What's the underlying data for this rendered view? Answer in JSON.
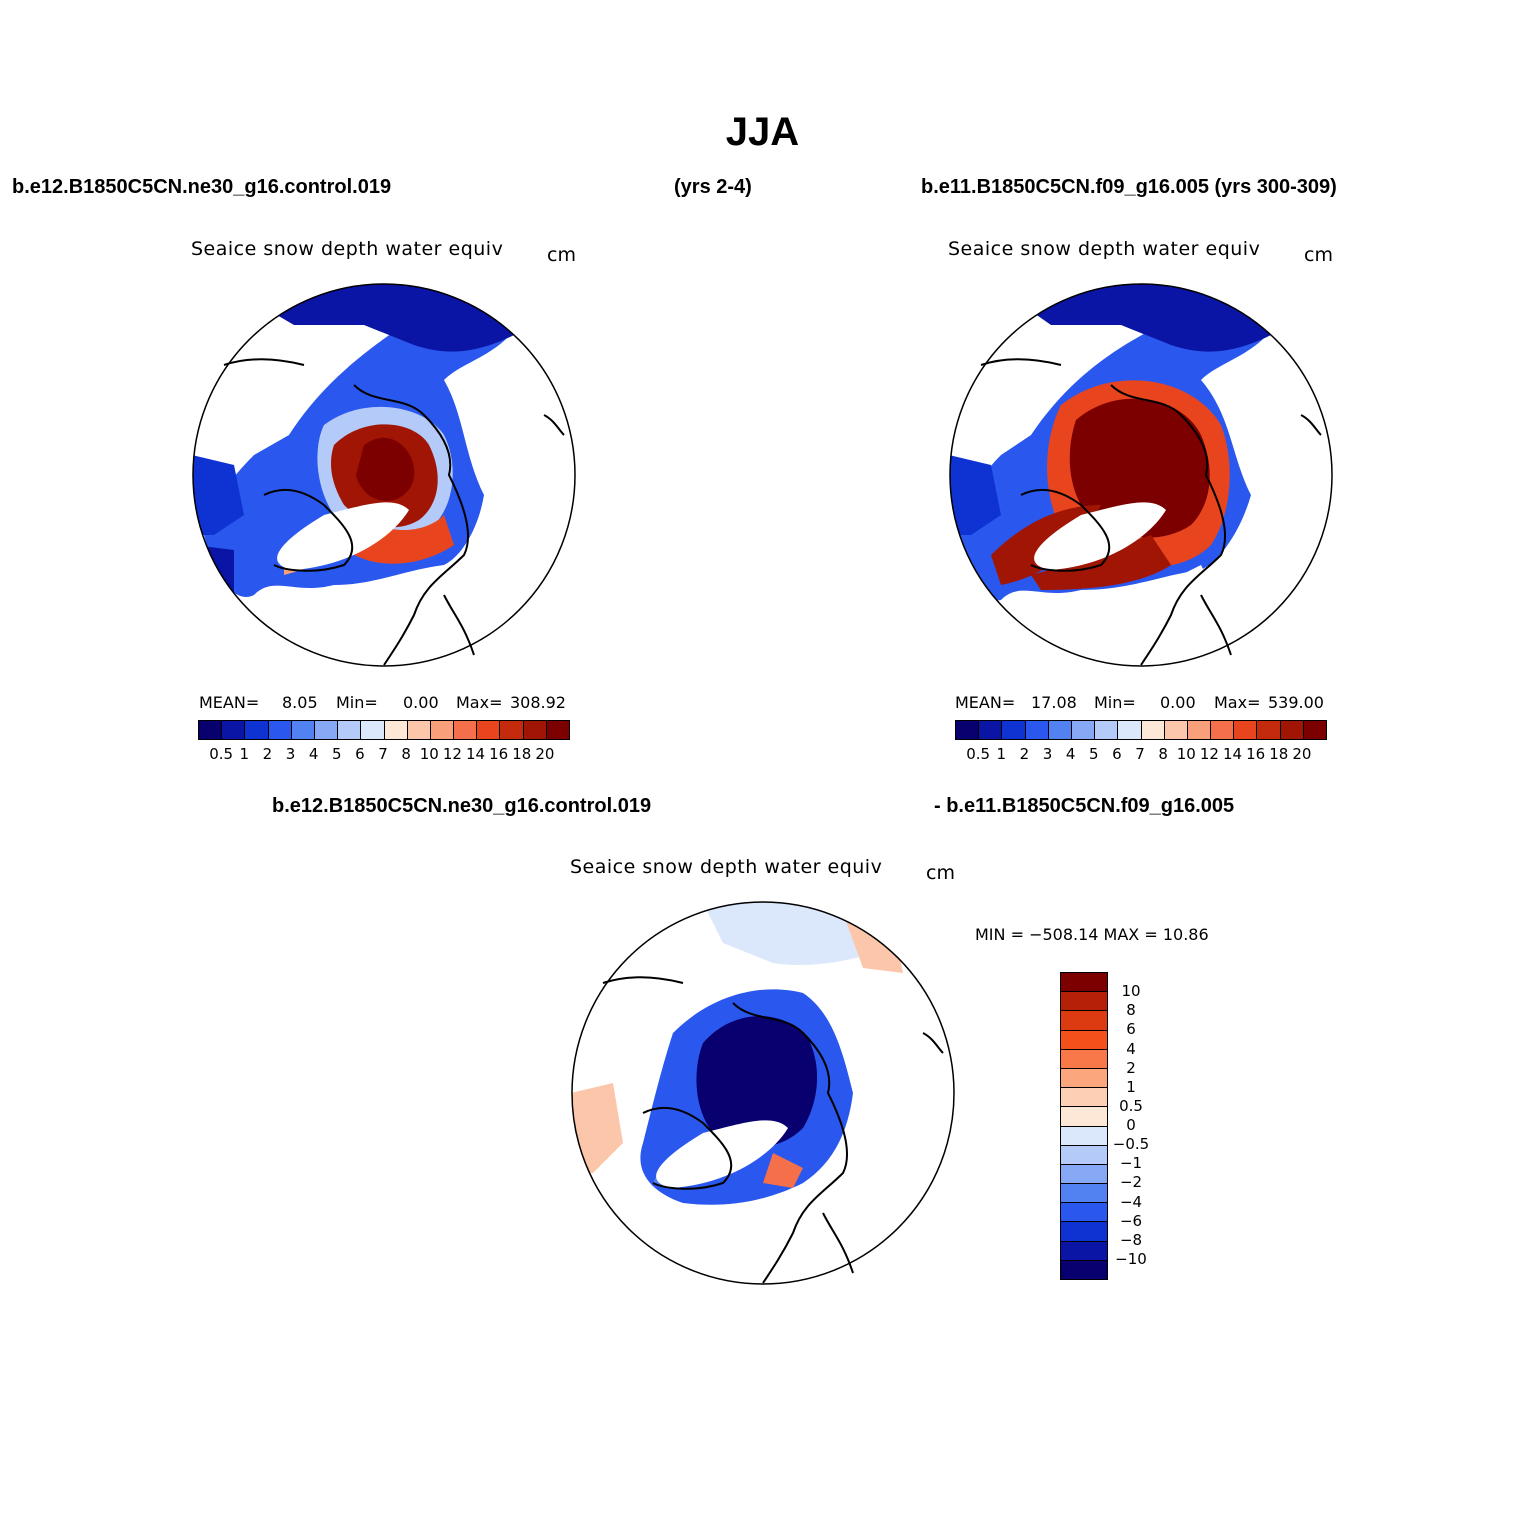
{
  "title": "JJA",
  "panel1": {
    "header_left": "b.e12.B1850C5CN.ne30_g16.control.019",
    "header_mid": "(yrs 2-4)",
    "subtitle": "Seaice snow depth water equiv",
    "units": "cm",
    "mean_label": "MEAN=",
    "mean": "8.05",
    "min_label": "Min=",
    "min": "0.00",
    "max_label": "Max=",
    "max": "308.92"
  },
  "panel2": {
    "header": "b.e11.B1850C5CN.f09_g16.005 (yrs 300-309)",
    "subtitle": "Seaice snow depth water equiv",
    "units": "cm",
    "mean_label": "MEAN=",
    "mean": "17.08",
    "min_label": "Min=",
    "min": "0.00",
    "max_label": "Max=",
    "max": "539.00"
  },
  "panel3": {
    "header_left": "b.e12.B1850C5CN.ne30_g16.control.019",
    "header_right": "- b.e11.B1850C5CN.f09_g16.005",
    "subtitle": "Seaice snow depth water equiv",
    "units": "cm",
    "minmax": "MIN = −508.14 MAX =   10.86"
  },
  "colorbar_main": {
    "colors": [
      "#08006e",
      "#0a14a5",
      "#0f32d2",
      "#2a58ee",
      "#5282f2",
      "#86a8f5",
      "#b4cbf9",
      "#dbe8fb",
      "#fde8d8",
      "#fcc6aa",
      "#f9a07a",
      "#f5704a",
      "#e8451f",
      "#c42a0c",
      "#a11505",
      "#7d0000"
    ],
    "labels": [
      "0.5",
      "1",
      "2",
      "3",
      "4",
      "5",
      "6",
      "7",
      "8",
      "10",
      "12",
      "14",
      "16",
      "18",
      "20"
    ]
  },
  "colorbar_diff": {
    "colors": [
      "#7d0000",
      "#b52008",
      "#dc3a10",
      "#f4501c",
      "#f8784a",
      "#fba67c",
      "#fdcfb4",
      "#fde8d8",
      "#dbe8fb",
      "#b4cbf9",
      "#86a8f5",
      "#5282f2",
      "#2a58ee",
      "#0f32d2",
      "#0a14a5",
      "#08006e"
    ],
    "labels": [
      "10",
      "8",
      "6",
      "4",
      "2",
      "1",
      "0.5",
      "0",
      "−0.5",
      "−1",
      "−2",
      "−4",
      "−6",
      "−8",
      "−10"
    ]
  }
}
